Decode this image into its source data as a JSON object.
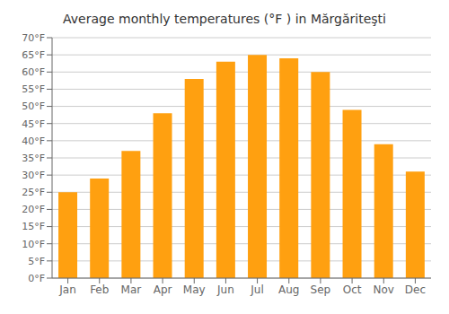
{
  "chart_data": {
    "type": "bar",
    "title": "Average monthly temperatures (°F ) in Mărgăriteşti",
    "categories": [
      "Jan",
      "Feb",
      "Mar",
      "Apr",
      "May",
      "Jun",
      "Jul",
      "Aug",
      "Sep",
      "Oct",
      "Nov",
      "Dec"
    ],
    "values": [
      25,
      29,
      37,
      48,
      58,
      63,
      65,
      64,
      60,
      49,
      39,
      31
    ],
    "color": "#FFA010",
    "ylim": [
      0,
      70
    ],
    "yticks": [
      {
        "value": 0,
        "label": "0°F"
      },
      {
        "value": 5,
        "label": "5°F"
      },
      {
        "value": 10,
        "label": "10°F"
      },
      {
        "value": 15,
        "label": "15°F"
      },
      {
        "value": 20,
        "label": "20°F"
      },
      {
        "value": 25,
        "label": "25°F"
      },
      {
        "value": 30,
        "label": "30°F"
      },
      {
        "value": 35,
        "label": "35°F"
      },
      {
        "value": 40,
        "label": "40°F"
      },
      {
        "value": 45,
        "label": "45°F"
      },
      {
        "value": 50,
        "label": "50°F"
      },
      {
        "value": 55,
        "label": "55°F"
      },
      {
        "value": 60,
        "label": "60°F"
      },
      {
        "value": 65,
        "label": "65°F"
      },
      {
        "value": 70,
        "label": "70°F"
      }
    ],
    "grid": true
  }
}
